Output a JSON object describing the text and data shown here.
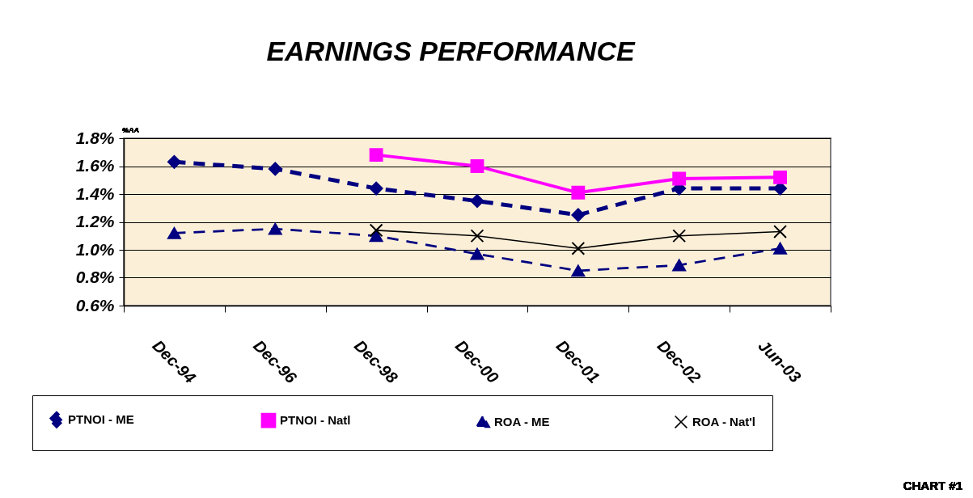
{
  "chart_data": {
    "type": "line",
    "title": "EARNINGS PERFORMANCE",
    "categories": [
      "Dec-94",
      "Dec-96",
      "Dec-98",
      "Dec-00",
      "Dec-01",
      "Dec-02",
      "Jun-03"
    ],
    "series": [
      {
        "name": "PTNOI - ME",
        "color": "#000080",
        "marker": "diamond",
        "line_style": "dashed",
        "values": [
          1.63,
          1.58,
          1.44,
          1.35,
          1.25,
          1.44,
          1.44
        ]
      },
      {
        "name": "PTNOI - Natl",
        "color": "#ff00ff",
        "marker": "square",
        "line_style": "solid",
        "values": [
          null,
          null,
          1.68,
          1.6,
          1.41,
          1.51,
          1.52
        ]
      },
      {
        "name": "ROA - ME",
        "color": "#000080",
        "marker": "triangle",
        "line_style": "dashed",
        "values": [
          1.12,
          1.15,
          1.1,
          0.97,
          0.85,
          0.89,
          1.01
        ]
      },
      {
        "name": "ROA - Nat'l",
        "color": "#000000",
        "marker": "cross",
        "line_style": "solid",
        "values": [
          null,
          null,
          1.14,
          1.1,
          1.01,
          1.1,
          1.13
        ]
      }
    ],
    "ylim": [
      0.6,
      1.8
    ],
    "yticks": [
      {
        "value": 0.6,
        "label": "0.6%"
      },
      {
        "value": 0.8,
        "label": "0.8%"
      },
      {
        "value": 1.0,
        "label": "1.0%"
      },
      {
        "value": 1.2,
        "label": "1.2%"
      },
      {
        "value": 1.4,
        "label": "1.4%"
      },
      {
        "value": 1.6,
        "label": "1.6%"
      },
      {
        "value": 1.8,
        "label": "1.8%"
      }
    ],
    "grid": "y",
    "legend": "bottom",
    "annotations": [
      "%AA",
      "CHART #1"
    ]
  }
}
